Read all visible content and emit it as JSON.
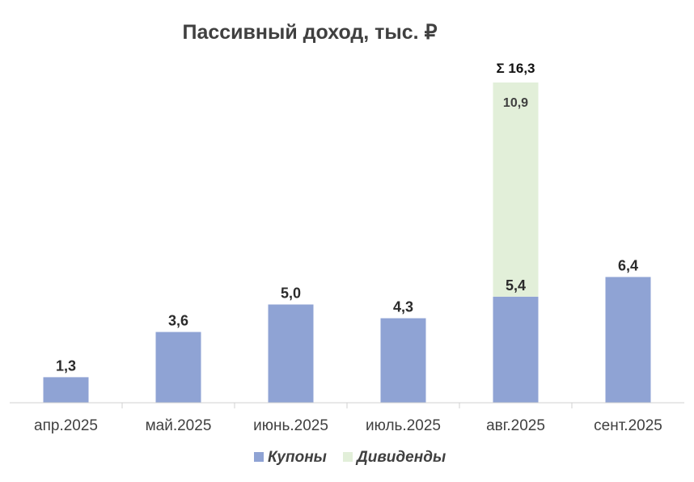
{
  "chart_data": {
    "type": "bar",
    "stacked": true,
    "title": "Пассивный доход, тыс. ₽",
    "categories": [
      "апр.2025",
      "май.2025",
      "июнь.2025",
      "июль.2025",
      "авг.2025",
      "сент.2025"
    ],
    "series": [
      {
        "name": "Купоны",
        "values": [
          1.3,
          3.6,
          5.0,
          4.3,
          5.4,
          6.4
        ],
        "labels": [
          "1,3",
          "3,6",
          "5,0",
          "4,3",
          "5,4",
          "6,4"
        ],
        "color": "#8FA3D4"
      },
      {
        "name": "Дивиденды",
        "values": [
          0,
          0,
          0,
          0,
          10.9,
          0
        ],
        "labels": [
          "",
          "",
          "",
          "",
          "10,9",
          ""
        ],
        "color": "#E2EFD9"
      }
    ],
    "totals": [
      {
        "category": "авг.2025",
        "label": "Σ 16,3"
      }
    ],
    "ylim": [
      0,
      16.3
    ],
    "grid": false,
    "legend": "bottom",
    "xlabel": "",
    "ylabel": ""
  }
}
